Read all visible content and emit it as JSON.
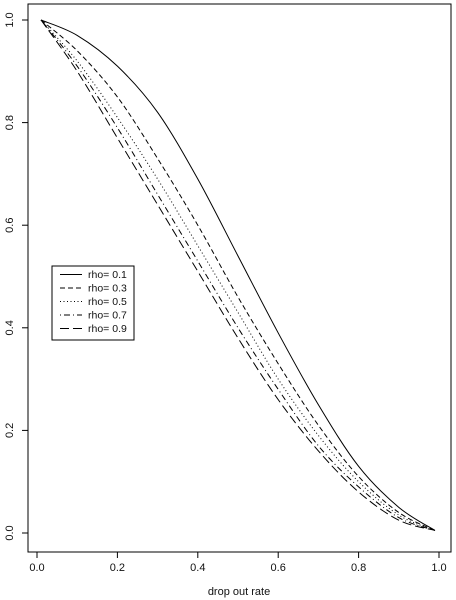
{
  "chart_data": {
    "type": "line",
    "title": "",
    "xlabel": "drop out rate",
    "ylabel": "",
    "xlim": [
      0,
      1
    ],
    "ylim": [
      0,
      1
    ],
    "x_ticks": [
      "0.0",
      "0.2",
      "0.4",
      "0.6",
      "0.8",
      "1.0"
    ],
    "y_ticks": [
      "0.0",
      "0.2",
      "0.4",
      "0.6",
      "0.8",
      "1.0"
    ],
    "grid": false,
    "legend_position": "middle-left",
    "x": [
      0.01,
      0.1,
      0.2,
      0.3,
      0.4,
      0.5,
      0.6,
      0.7,
      0.8,
      0.9,
      0.99
    ],
    "series": [
      {
        "name": "rho= 0.1",
        "line_style": "solid",
        "values": [
          1.0,
          0.97,
          0.91,
          0.82,
          0.69,
          0.54,
          0.39,
          0.25,
          0.13,
          0.05,
          0.005
        ]
      },
      {
        "name": "rho= 0.3",
        "line_style": "dashed",
        "values": [
          1.0,
          0.94,
          0.85,
          0.73,
          0.6,
          0.46,
          0.33,
          0.21,
          0.11,
          0.04,
          0.005
        ]
      },
      {
        "name": "rho= 0.5",
        "line_style": "dotted",
        "values": [
          1.0,
          0.92,
          0.81,
          0.69,
          0.56,
          0.43,
          0.3,
          0.19,
          0.1,
          0.035,
          0.005
        ]
      },
      {
        "name": "rho= 0.7",
        "line_style": "dotdash",
        "values": [
          1.0,
          0.91,
          0.79,
          0.66,
          0.53,
          0.4,
          0.28,
          0.17,
          0.09,
          0.03,
          0.005
        ]
      },
      {
        "name": "rho= 0.9",
        "line_style": "longdash",
        "values": [
          1.0,
          0.9,
          0.77,
          0.64,
          0.51,
          0.38,
          0.26,
          0.16,
          0.08,
          0.025,
          0.005
        ]
      }
    ],
    "colors": {
      "line": "#000000",
      "axis": "#000000",
      "background": "#ffffff"
    }
  }
}
